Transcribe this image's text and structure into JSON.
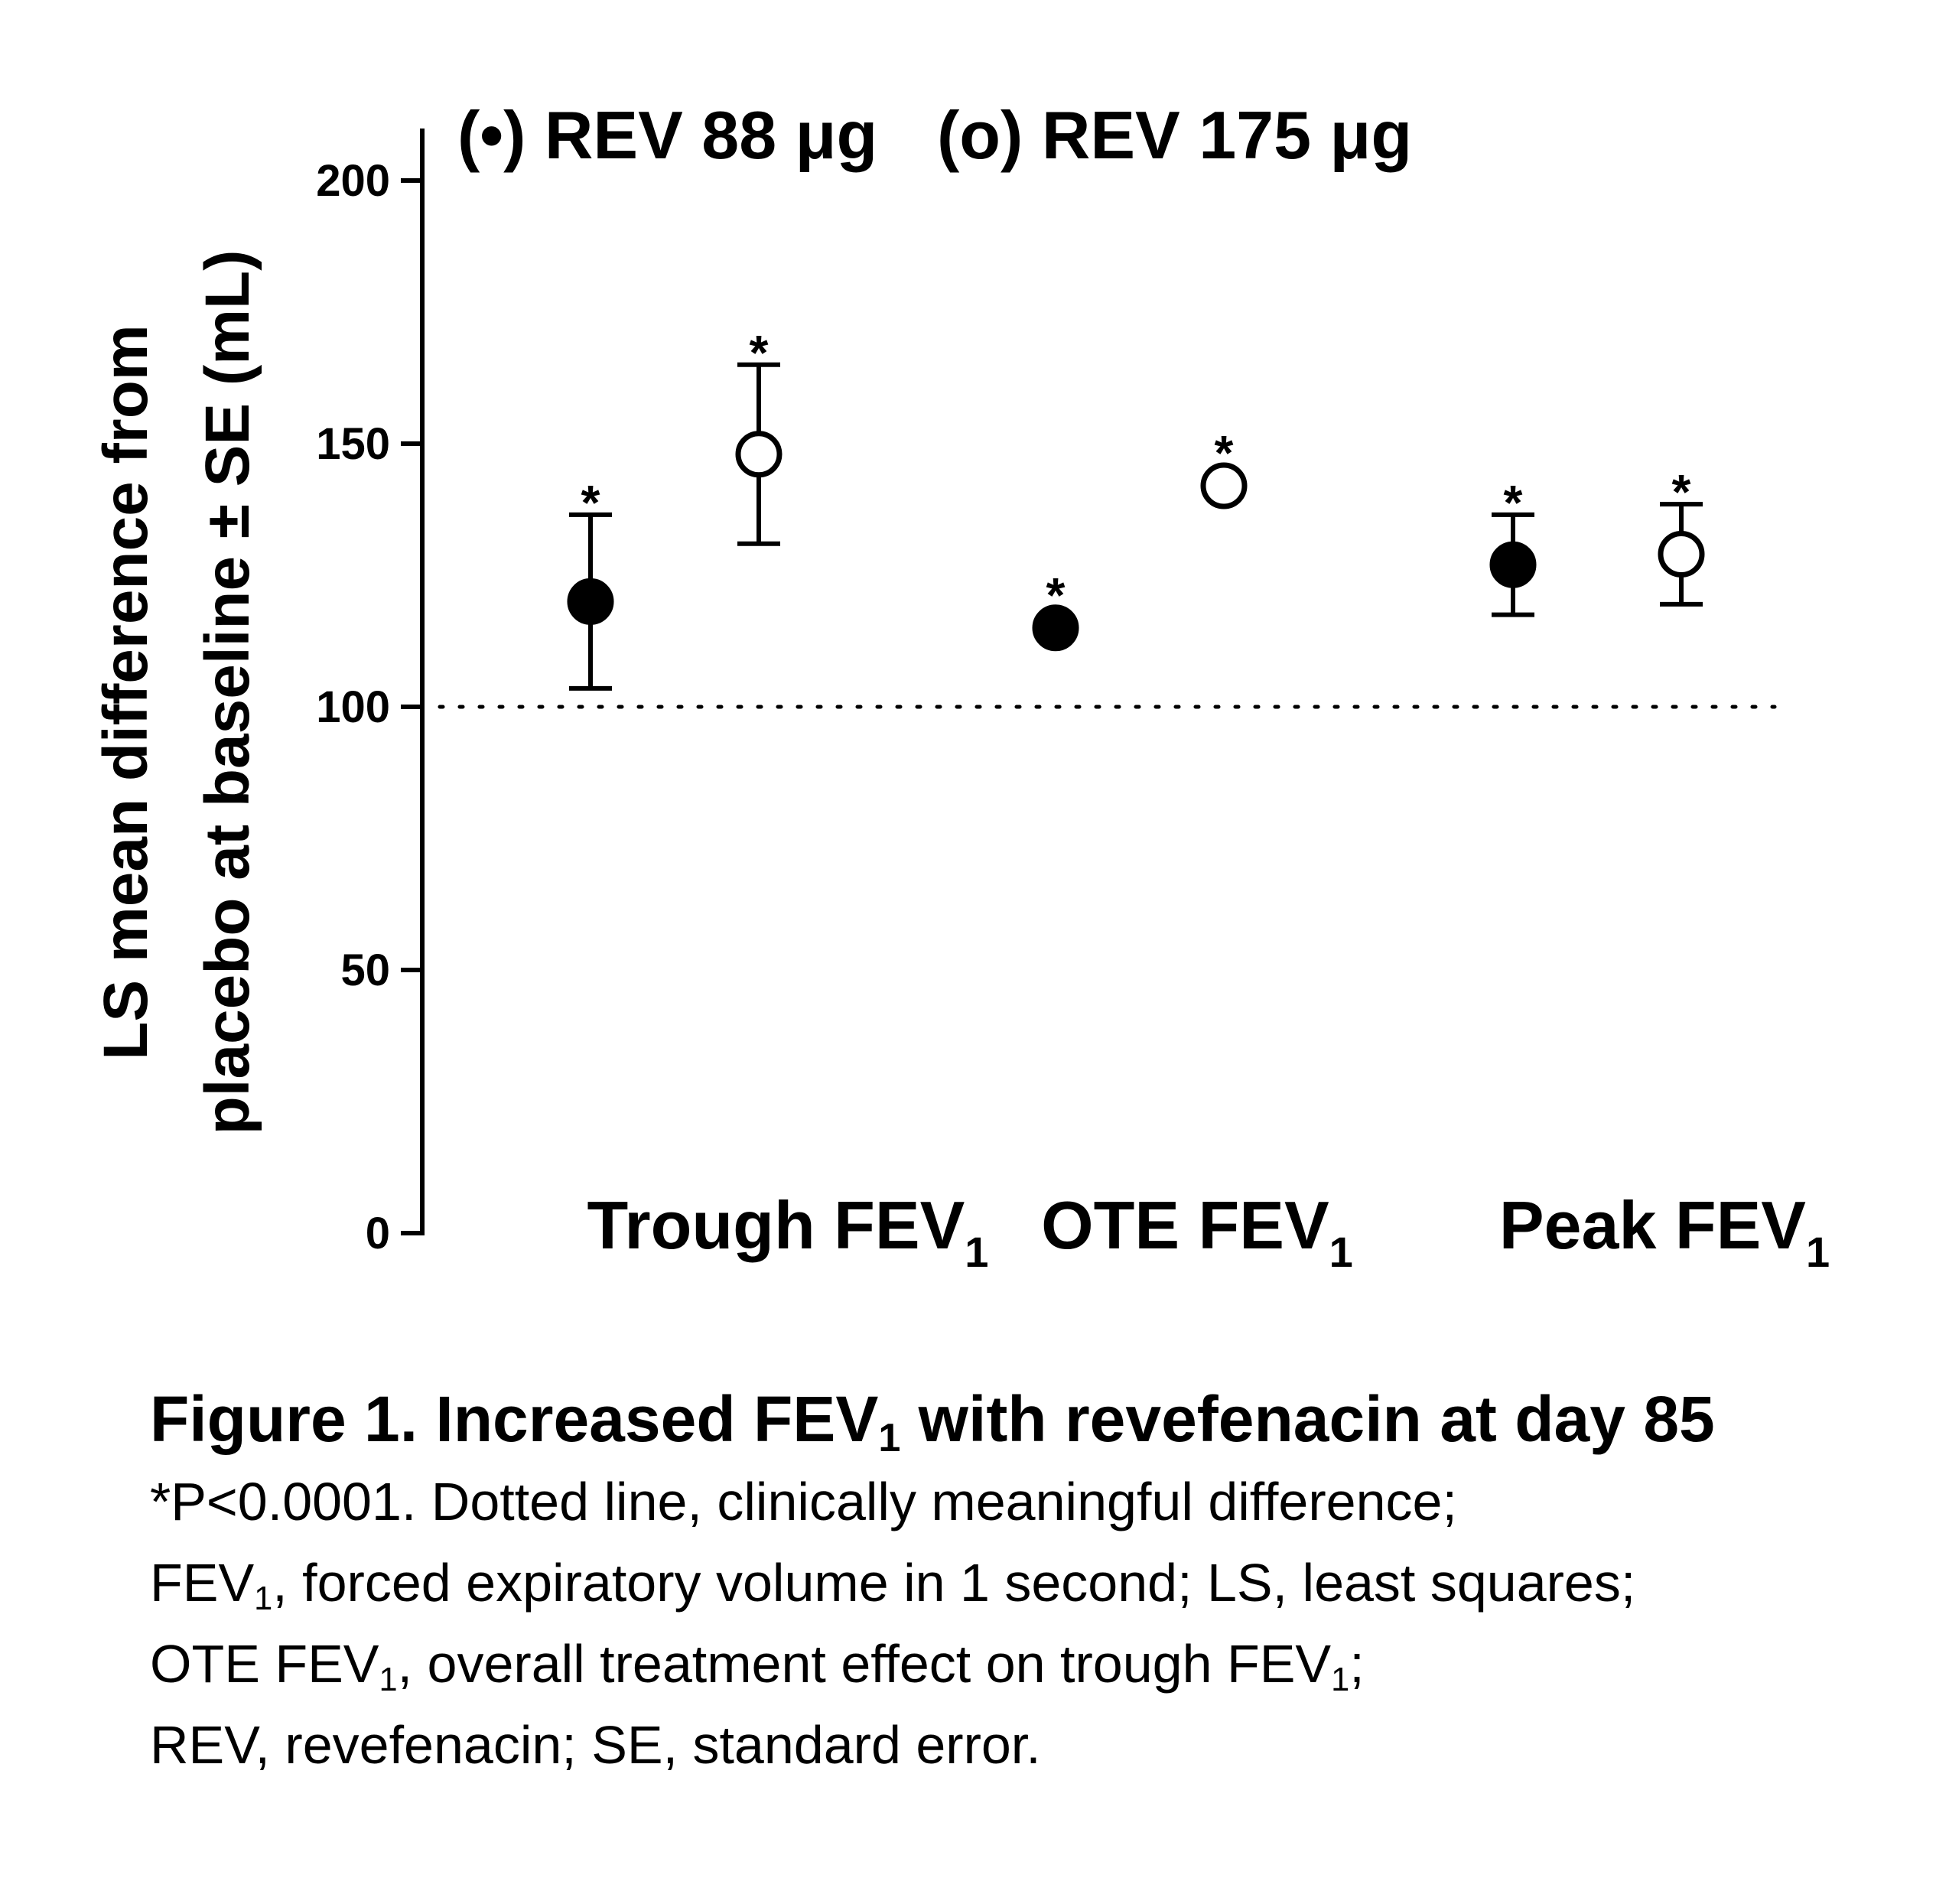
{
  "chart_data": {
    "type": "scatter",
    "legend": {
      "placement": "top",
      "items": [
        {
          "marker": "filled-circle",
          "symbol": "(•)",
          "label": "REV 88 μg"
        },
        {
          "marker": "open-circle",
          "symbol": "(o)",
          "label": "REV 175 μg"
        }
      ]
    },
    "ylabel_line1": "LS mean difference from",
    "ylabel_line2": "placebo at baseline ± SE (mL)",
    "ylim": [
      0,
      200
    ],
    "yticks": [
      0,
      50,
      100,
      150,
      200
    ],
    "categories": [
      {
        "label": "Trough FEV",
        "sub": "1"
      },
      {
        "label": "OTE FEV",
        "sub": "1"
      },
      {
        "label": "Peak FEV",
        "sub": "1"
      }
    ],
    "reference_line": {
      "y": 100,
      "style": "dotted"
    },
    "significance_marker": "*",
    "series": [
      {
        "name": "REV 88 μg",
        "marker": "filled",
        "color": "#000000",
        "values": [
          120,
          115,
          127
        ],
        "se": [
          16.5,
          0,
          9.5
        ],
        "significant": [
          true,
          true,
          true
        ]
      },
      {
        "name": "REV 175 μg",
        "marker": "open",
        "color": "#000000",
        "values": [
          148,
          142,
          129
        ],
        "se": [
          17,
          0,
          9.5
        ],
        "significant": [
          true,
          true,
          true
        ]
      }
    ],
    "grid": false
  },
  "caption": {
    "title_before": "Figure 1. Increased FEV",
    "title_sub": "1",
    "title_after": " with revefenacin at day 85",
    "line1": "*P<0.0001. Dotted line, clinically meaningful difference;",
    "line2_a": "FEV",
    "line2_sub": "1",
    "line2_b": ", forced expiratory volume in 1 second; LS, least squares;",
    "line3_a": "OTE FEV",
    "line3_sub1": "1",
    "line3_b": ", overall treatment effect on trough FEV",
    "line3_sub2": "1",
    "line3_c": ";",
    "line4": "REV, revefenacin; SE, standard error."
  }
}
